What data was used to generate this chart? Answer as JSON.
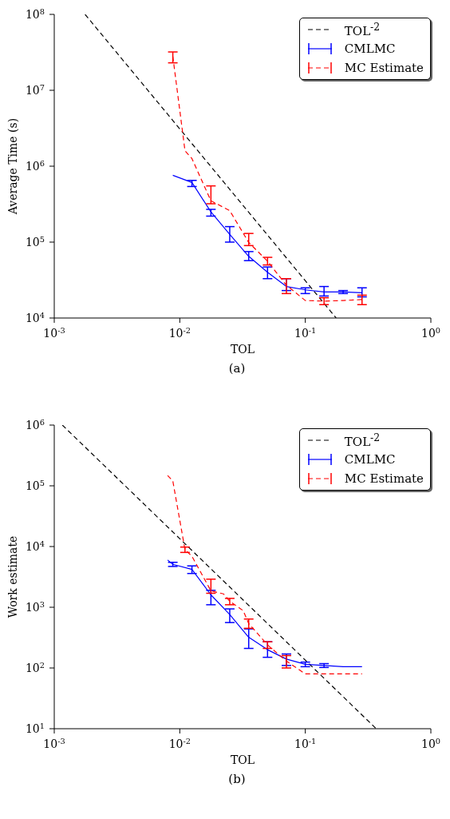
{
  "chart_data": [
    {
      "type": "line",
      "xlabel": "TOL",
      "ylabel": "Average Time (s)",
      "annotations": [
        "(a)"
      ],
      "log": "xy",
      "legend": "top right",
      "marker": "none",
      "xlim": [
        0.001,
        1
      ],
      "xticks": [
        {
          "value": 0.001,
          "label": "10$^{-3}$"
        },
        {
          "value": 0.01,
          "label": "10$^{-2}$"
        },
        {
          "value": 0.1,
          "label": "10$^{-1}$"
        },
        {
          "value": 1,
          "label": "10$^{0}$"
        }
      ],
      "ylim": [
        10000,
        100000000
      ],
      "yticks": [
        {
          "value": 10000,
          "label": "10$^{4}$"
        },
        {
          "value": 100000,
          "label": "10$^{5}$"
        },
        {
          "value": 1000000,
          "label": "10$^{6}$"
        },
        {
          "value": 10000000,
          "label": "10$^{7}$"
        },
        {
          "value": 100000000,
          "label": "10$^{8}$"
        }
      ],
      "series": [
        {
          "name": "TOL$^{-2}$",
          "color": "#000000",
          "line_style": "dashed",
          "x": [
            0.00176,
            0.176
          ],
          "values": [
            100000000,
            10000
          ]
        },
        {
          "name": "CMLMC",
          "color": "#0000ff",
          "line_style": "solid",
          "x": [
            0.0088,
            0.0125,
            0.0177,
            0.025,
            0.0354,
            0.05,
            0.0707,
            0.1,
            0.141,
            0.2,
            0.283
          ],
          "values": [
            760000,
            610000,
            250000,
            126000,
            65000,
            40000,
            26000,
            23500,
            22000,
            22000,
            21500
          ],
          "errors": [
            null,
            [
              540000,
              650000
            ],
            [
              220000,
              270000
            ],
            [
              100000,
              160000
            ],
            [
              57000,
              75000
            ],
            [
              33000,
              47000
            ],
            [
              23000,
              33000
            ],
            [
              21000,
              25000
            ],
            [
              19500,
              26000
            ],
            [
              21000,
              23000
            ],
            [
              19000,
              25000
            ]
          ]
        },
        {
          "name": "MC Estimate",
          "color": "#ff0000",
          "line_style": "dashed",
          "x": [
            0.0088,
            0.011,
            0.0125,
            0.0177,
            0.025,
            0.0354,
            0.05,
            0.0707,
            0.1,
            0.141,
            0.2,
            0.283
          ],
          "values": [
            28000000,
            1600000,
            1260000,
            350000,
            260000,
            99000,
            56000,
            27000,
            17000,
            16700,
            17000,
            17500
          ],
          "errors": [
            [
              23000000,
              32000000
            ],
            null,
            null,
            [
              320000,
              550000
            ],
            null,
            [
              90000,
              130000
            ],
            [
              50000,
              63000
            ],
            [
              21000,
              33000
            ],
            null,
            [
              15000,
              18500
            ],
            null,
            [
              15000,
              20000
            ]
          ]
        }
      ]
    },
    {
      "type": "line",
      "xlabel": "TOL",
      "ylabel": "Work estimate",
      "annotations": [
        "(b)"
      ],
      "log": "xy",
      "legend": "top right",
      "marker": "none",
      "xlim": [
        0.001,
        1
      ],
      "xticks": [
        {
          "value": 0.001,
          "label": "10$^{-3}$"
        },
        {
          "value": 0.01,
          "label": "10$^{-2}$"
        },
        {
          "value": 0.1,
          "label": "10$^{-1}$"
        },
        {
          "value": 1,
          "label": "10$^{0}$"
        }
      ],
      "ylim": [
        10,
        1000000
      ],
      "yticks": [
        {
          "value": 10,
          "label": "10$^{1}$"
        },
        {
          "value": 100,
          "label": "10$^{2}$"
        },
        {
          "value": 1000,
          "label": "10$^{3}$"
        },
        {
          "value": 10000,
          "label": "10$^{4}$"
        },
        {
          "value": 100000,
          "label": "10$^{5}$"
        },
        {
          "value": 1000000,
          "label": "10$^{6}$"
        }
      ],
      "series": [
        {
          "name": "TOL$^{-2}$",
          "color": "#000000",
          "line_style": "dashed",
          "x": [
            0.00116,
            0.367
          ],
          "values": [
            1000000,
            10
          ]
        },
        {
          "name": "CMLMC",
          "color": "#0000ff",
          "line_style": "solid",
          "x": [
            0.008,
            0.0088,
            0.0125,
            0.0177,
            0.025,
            0.0354,
            0.05,
            0.0707,
            0.1,
            0.141,
            0.2,
            0.283
          ],
          "values": [
            6000,
            5100,
            4200,
            1600,
            760,
            320,
            200,
            140,
            115,
            110,
            105,
            105
          ],
          "errors": [
            null,
            [
              4700,
              5500
            ],
            [
              3600,
              4800
            ],
            [
              1100,
              1900
            ],
            [
              560,
              940
            ],
            [
              210,
              440
            ],
            [
              150,
              270
            ],
            [
              110,
              170
            ],
            [
              105,
              125
            ],
            [
              102,
              118
            ],
            null,
            null
          ]
        },
        {
          "name": "MC Estimate",
          "color": "#ff0000",
          "line_style": "dashed",
          "x": [
            0.008,
            0.0088,
            0.011,
            0.0125,
            0.0177,
            0.0223,
            0.025,
            0.032,
            0.0354,
            0.05,
            0.0707,
            0.1,
            0.141,
            0.2,
            0.283
          ],
          "values": [
            148000,
            120000,
            8900,
            6900,
            1860,
            1660,
            1260,
            880,
            540,
            240,
            130,
            80,
            80,
            80,
            80
          ],
          "errors": [
            null,
            null,
            [
              8000,
              9800
            ],
            null,
            [
              1700,
              2900
            ],
            null,
            [
              1100,
              1400
            ],
            null,
            [
              450,
              640
            ],
            [
              210,
              270
            ],
            [
              100,
              160
            ],
            null,
            null,
            null,
            null
          ]
        }
      ]
    }
  ]
}
